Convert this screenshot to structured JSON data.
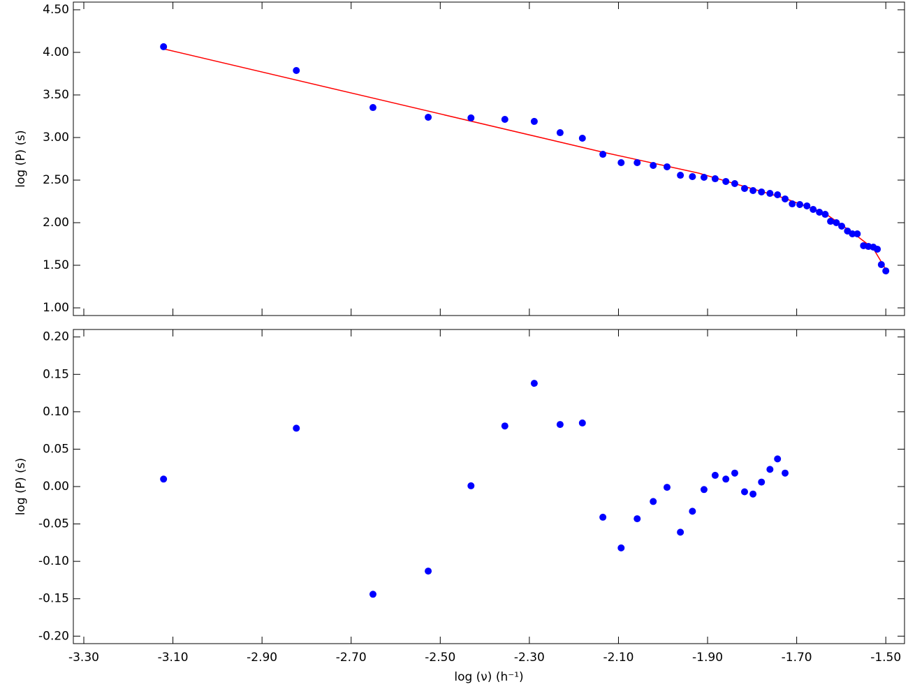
{
  "chart_data": [
    {
      "type": "scatter",
      "y_label": "log (P) (s)",
      "xlim": [
        -3.3235,
        -1.458
      ],
      "ylim": [
        0.91,
        4.59
      ],
      "xticks": [
        -3.3,
        -3.1,
        -2.9,
        -2.7,
        -2.5,
        -2.3,
        -2.1,
        -1.9,
        -1.7,
        -1.5
      ],
      "yticks": [
        {
          "value": 1.0,
          "label": "1.00"
        },
        {
          "value": 1.5,
          "label": "1.50"
        },
        {
          "value": 2.0,
          "label": "2.00"
        },
        {
          "value": 2.5,
          "label": "2.50"
        },
        {
          "value": 3.0,
          "label": "3.00"
        },
        {
          "value": 3.5,
          "label": "3.50"
        },
        {
          "value": 4.0,
          "label": "4.00"
        },
        {
          "value": 4.5,
          "label": "4.50"
        }
      ],
      "color": "#0000ff",
      "x": [
        -3.121,
        -2.823,
        -2.651,
        -2.527,
        -2.431,
        -2.355,
        -2.289,
        -2.231,
        -2.181,
        -2.135,
        -2.094,
        -2.058,
        -2.022,
        -1.991,
        -1.961,
        -1.934,
        -1.908,
        -1.883,
        -1.859,
        -1.839,
        -1.817,
        -1.798,
        -1.779,
        -1.76,
        -1.743,
        -1.726,
        -1.71,
        -1.693,
        -1.677,
        -1.663,
        -1.649,
        -1.636,
        -1.624,
        -1.611,
        -1.599,
        -1.586,
        -1.575,
        -1.564,
        -1.55,
        -1.539,
        -1.528,
        -1.519,
        -1.51,
        -1.5
      ],
      "values": [
        4.066,
        3.787,
        3.352,
        3.238,
        3.23,
        3.213,
        3.189,
        3.057,
        2.992,
        2.803,
        2.705,
        2.705,
        2.672,
        2.656,
        2.557,
        2.541,
        2.533,
        2.516,
        2.484,
        2.459,
        2.402,
        2.377,
        2.361,
        2.344,
        2.328,
        2.279,
        2.221,
        2.213,
        2.197,
        2.156,
        2.123,
        2.098,
        2.016,
        2.0,
        1.959,
        1.902,
        1.869,
        1.869,
        1.73,
        1.721,
        1.713,
        1.689,
        1.508,
        1.434
      ],
      "fit": {
        "color": "#ff0000",
        "x": [
          -3.121,
          -2.135,
          -1.92,
          -1.732,
          -1.638,
          -1.575,
          -1.528,
          -1.497
        ],
        "values": [
          4.041,
          2.828,
          2.582,
          2.295,
          2.115,
          1.885,
          1.697,
          1.426
        ]
      }
    },
    {
      "type": "scatter",
      "y_label": "log (P) (s)",
      "x_label": "log (ν) (h⁻¹)",
      "xlim": [
        -3.3235,
        -1.458
      ],
      "ylim": [
        -0.21,
        0.21
      ],
      "xticks": [
        {
          "value": -3.3,
          "label": "-3.30"
        },
        {
          "value": -3.1,
          "label": "-3.10"
        },
        {
          "value": -2.9,
          "label": "-2.90"
        },
        {
          "value": -2.7,
          "label": "-2.70"
        },
        {
          "value": -2.5,
          "label": "-2.50"
        },
        {
          "value": -2.3,
          "label": "-2.30"
        },
        {
          "value": -2.1,
          "label": "-2.10"
        },
        {
          "value": -1.9,
          "label": "-1.90"
        },
        {
          "value": -1.7,
          "label": "-1.70"
        },
        {
          "value": -1.5,
          "label": "-1.50"
        }
      ],
      "yticks": [
        {
          "value": -0.2,
          "label": "-0.20"
        },
        {
          "value": -0.15,
          "label": "-0.15"
        },
        {
          "value": -0.1,
          "label": "-0.10"
        },
        {
          "value": -0.05,
          "label": "-0.05"
        },
        {
          "value": 0,
          "label": "0.00"
        },
        {
          "value": 0.05,
          "label": "0.05"
        },
        {
          "value": 0.1,
          "label": "0.10"
        },
        {
          "value": 0.15,
          "label": "0.15"
        },
        {
          "value": 0.2,
          "label": "0.20"
        }
      ],
      "color": "#0000ff",
      "x": [
        -3.121,
        -2.823,
        -2.651,
        -2.527,
        -2.431,
        -2.355,
        -2.289,
        -2.231,
        -2.181,
        -2.135,
        -2.094,
        -2.058,
        -2.022,
        -1.991,
        -1.961,
        -1.934,
        -1.908,
        -1.883,
        -1.859,
        -1.839,
        -1.817,
        -1.798,
        -1.779,
        -1.76,
        -1.743,
        -1.726
      ],
      "values": [
        0.01,
        0.078,
        -0.144,
        -0.113,
        0.001,
        0.081,
        0.138,
        0.083,
        0.085,
        -0.041,
        -0.082,
        -0.043,
        -0.02,
        -0.001,
        -0.061,
        -0.033,
        -0.004,
        0.015,
        0.01,
        0.018,
        -0.007,
        -0.01,
        0.006,
        0.023,
        0.037,
        0.018
      ]
    }
  ]
}
